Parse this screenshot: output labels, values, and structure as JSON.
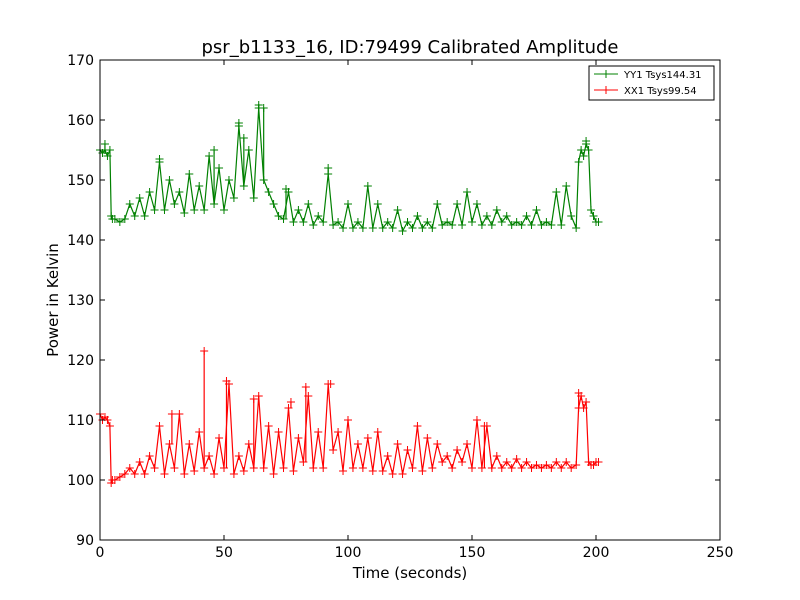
{
  "chart_data": {
    "type": "line",
    "title": "psr_b1133_16, ID:79499 Calibrated Amplitude",
    "xlabel": "Time (seconds)",
    "ylabel": "Power in Kelvin",
    "xlim": [
      0,
      250
    ],
    "ylim": [
      90,
      170
    ],
    "xticks": [
      0,
      50,
      100,
      150,
      200,
      250
    ],
    "yticks": [
      90,
      100,
      110,
      120,
      130,
      140,
      150,
      160,
      170
    ],
    "grid": false,
    "legend_position": "top-right",
    "marker": "plus",
    "series": [
      {
        "name": "YY1 Tsys144.31",
        "color": "#008000",
        "x": [
          0,
          1,
          2,
          3,
          4,
          4.5,
          5,
          6,
          8,
          10,
          12,
          14,
          16,
          18,
          20,
          22,
          24,
          26,
          28,
          30,
          32,
          34,
          36,
          38,
          40,
          42,
          44,
          46,
          48,
          50,
          52,
          54,
          56,
          58,
          60,
          62,
          64,
          66,
          68,
          70,
          72,
          74,
          76,
          78,
          80,
          82,
          84,
          86,
          88,
          90,
          92,
          94,
          96,
          98,
          100,
          102,
          104,
          106,
          108,
          110,
          112,
          114,
          116,
          118,
          120,
          122,
          124,
          126,
          128,
          130,
          132,
          134,
          136,
          138,
          140,
          142,
          144,
          146,
          148,
          150,
          152,
          154,
          156,
          158,
          160,
          162,
          164,
          166,
          168,
          170,
          172,
          174,
          176,
          178,
          180,
          182,
          184,
          186,
          188,
          190,
          192,
          193,
          194,
          195,
          196,
          197,
          198,
          199,
          200,
          201
        ],
        "values": [
          155,
          154.5,
          155,
          154,
          155,
          144,
          143.5,
          143.5,
          143,
          143.5,
          146,
          144,
          147,
          144,
          148,
          145,
          153,
          145,
          150,
          146,
          148,
          144.5,
          151,
          145,
          149,
          145,
          154,
          146,
          152,
          145,
          150,
          147,
          159,
          149,
          155,
          147,
          162,
          150,
          148,
          146,
          144,
          143.5,
          148,
          143,
          145,
          143,
          146,
          142.5,
          144,
          143,
          151,
          142.5,
          143,
          142,
          146,
          142,
          143,
          142,
          149,
          142,
          146,
          142,
          143,
          142,
          145,
          141.5,
          143,
          142,
          144,
          142,
          143,
          142,
          146,
          142.5,
          143,
          142.5,
          146,
          142.5,
          148,
          143,
          146,
          142.5,
          144,
          142.5,
          145,
          143,
          144,
          142.5,
          143,
          142.5,
          144,
          142.5,
          145,
          142.5,
          143,
          142.5,
          148,
          142.5,
          149,
          144,
          142,
          153,
          155,
          154,
          156,
          155,
          145,
          144,
          143,
          143
        ]
      },
      {
        "name": "XX1 Tsys99.54",
        "color": "#ff0000",
        "x": [
          0,
          1,
          2,
          3,
          4,
          4.5,
          5,
          6,
          8,
          10,
          12,
          14,
          16,
          18,
          20,
          22,
          24,
          26,
          28,
          30,
          32,
          34,
          36,
          38,
          40,
          42,
          44,
          46,
          48,
          50,
          52,
          54,
          56,
          58,
          60,
          62,
          64,
          66,
          68,
          70,
          72,
          74,
          76,
          78,
          80,
          82,
          84,
          86,
          88,
          90,
          92,
          94,
          96,
          98,
          100,
          102,
          104,
          106,
          108,
          110,
          112,
          114,
          116,
          118,
          120,
          122,
          124,
          126,
          128,
          130,
          132,
          134,
          136,
          138,
          140,
          142,
          144,
          146,
          148,
          150,
          152,
          154,
          156,
          158,
          160,
          162,
          164,
          166,
          168,
          170,
          172,
          174,
          176,
          178,
          180,
          182,
          184,
          186,
          188,
          190,
          192,
          193,
          194,
          195,
          196,
          197,
          198,
          199,
          200,
          201
        ],
        "values": [
          111,
          110,
          110.5,
          110,
          109,
          99.5,
          100,
          100,
          100.5,
          101,
          102,
          101,
          103,
          101,
          104,
          102,
          109,
          101,
          106,
          102,
          111,
          101,
          106,
          101.5,
          108,
          102,
          104,
          101,
          107,
          102,
          116,
          101,
          104,
          101.5,
          106,
          102,
          114,
          102,
          109,
          101,
          108,
          102,
          112,
          101.5,
          107,
          103,
          114,
          102,
          108,
          102,
          116,
          105,
          108,
          101.5,
          110,
          102,
          106,
          102,
          107,
          101.5,
          108,
          101.5,
          104,
          101,
          106,
          101,
          105,
          102,
          109,
          101.5,
          107,
          102,
          106,
          103,
          104,
          102,
          105,
          103,
          106,
          102,
          110,
          102,
          109,
          102,
          104,
          102,
          103,
          102,
          103.5,
          102,
          103,
          102,
          102.5,
          102,
          102.5,
          102,
          103,
          102,
          103,
          102,
          102.5,
          112,
          114,
          112,
          113,
          103,
          102.5,
          102.5,
          103,
          103
        ]
      }
    ],
    "spikes": [
      {
        "series": 0,
        "x": 64,
        "y": 162.5
      },
      {
        "series": 0,
        "x": 66,
        "y": 162
      },
      {
        "series": 0,
        "x": 56,
        "y": 159.5
      },
      {
        "series": 0,
        "x": 58,
        "y": 157
      },
      {
        "series": 0,
        "x": 46,
        "y": 155
      },
      {
        "series": 0,
        "x": 24,
        "y": 153.5
      },
      {
        "series": 0,
        "x": 92,
        "y": 152
      },
      {
        "series": 0,
        "x": 75,
        "y": 148.5
      },
      {
        "series": 0,
        "x": 196,
        "y": 156.5
      },
      {
        "series": 0,
        "x": 2,
        "y": 156
      },
      {
        "series": 1,
        "x": 42,
        "y": 121.5
      },
      {
        "series": 1,
        "x": 51,
        "y": 116.5
      },
      {
        "series": 1,
        "x": 93,
        "y": 116
      },
      {
        "series": 1,
        "x": 62,
        "y": 113.5
      },
      {
        "series": 1,
        "x": 77,
        "y": 113
      },
      {
        "series": 1,
        "x": 83,
        "y": 115.5
      },
      {
        "series": 1,
        "x": 29,
        "y": 111
      },
      {
        "series": 1,
        "x": 155,
        "y": 109
      },
      {
        "series": 1,
        "x": 193,
        "y": 114.5
      },
      {
        "series": 1,
        "x": 0,
        "y": 111
      }
    ]
  }
}
